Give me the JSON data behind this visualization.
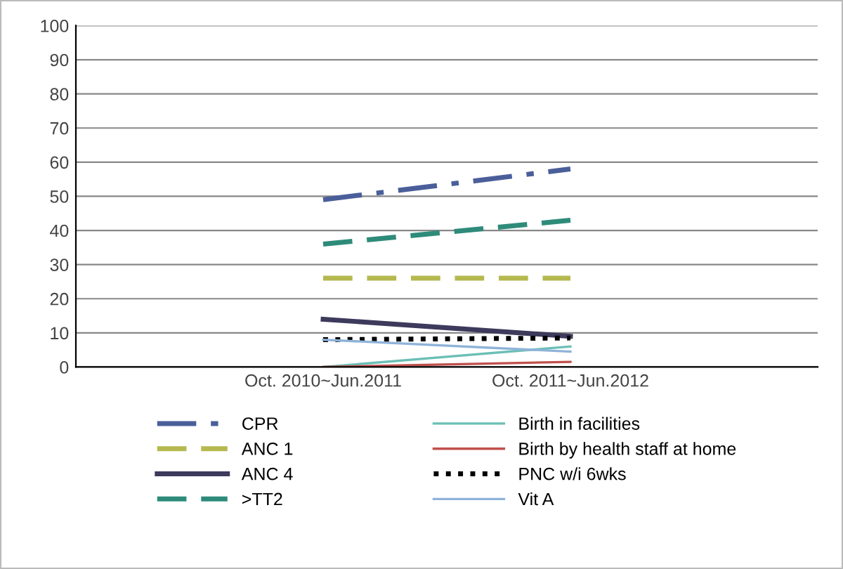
{
  "chart_data": {
    "type": "line",
    "categories": [
      "Oct. 2010~Jun.2011",
      "Oct. 2011~Jun.2012"
    ],
    "series": [
      {
        "name": "CPR",
        "color": "#4a5f9a",
        "line_style": "dashdot",
        "values": [
          49,
          58
        ]
      },
      {
        "name": "ANC 1",
        "color": "#b5b84e",
        "line_style": "dashed",
        "values": [
          26,
          26
        ]
      },
      {
        "name": "ANC 4",
        "color": "#3d3a5c",
        "line_style": "solid",
        "values": [
          14,
          9
        ]
      },
      {
        "name": ">TT2",
        "color": "#2e8b7a",
        "line_style": "dashed",
        "values": [
          36,
          43
        ]
      },
      {
        "name": "Birth in facilities",
        "color": "#6bbfb5",
        "line_style": "solid",
        "values": [
          0,
          6
        ]
      },
      {
        "name": "Birth by health staff at home",
        "color": "#c0504d",
        "line_style": "solid",
        "values": [
          0,
          1.5
        ]
      },
      {
        "name": "PNC w/i 6wks",
        "color": "#000000",
        "line_style": "dotted",
        "values": [
          8,
          8.5
        ]
      },
      {
        "name": "Vit A",
        "color": "#8fb3d9",
        "line_style": "solid",
        "values": [
          8,
          4.5
        ]
      }
    ],
    "ylim": [
      0,
      100
    ],
    "yticks": [
      0,
      10,
      20,
      30,
      40,
      50,
      60,
      70,
      80,
      90,
      100
    ],
    "grid": "y",
    "legend": "bottom",
    "marker": "none"
  }
}
